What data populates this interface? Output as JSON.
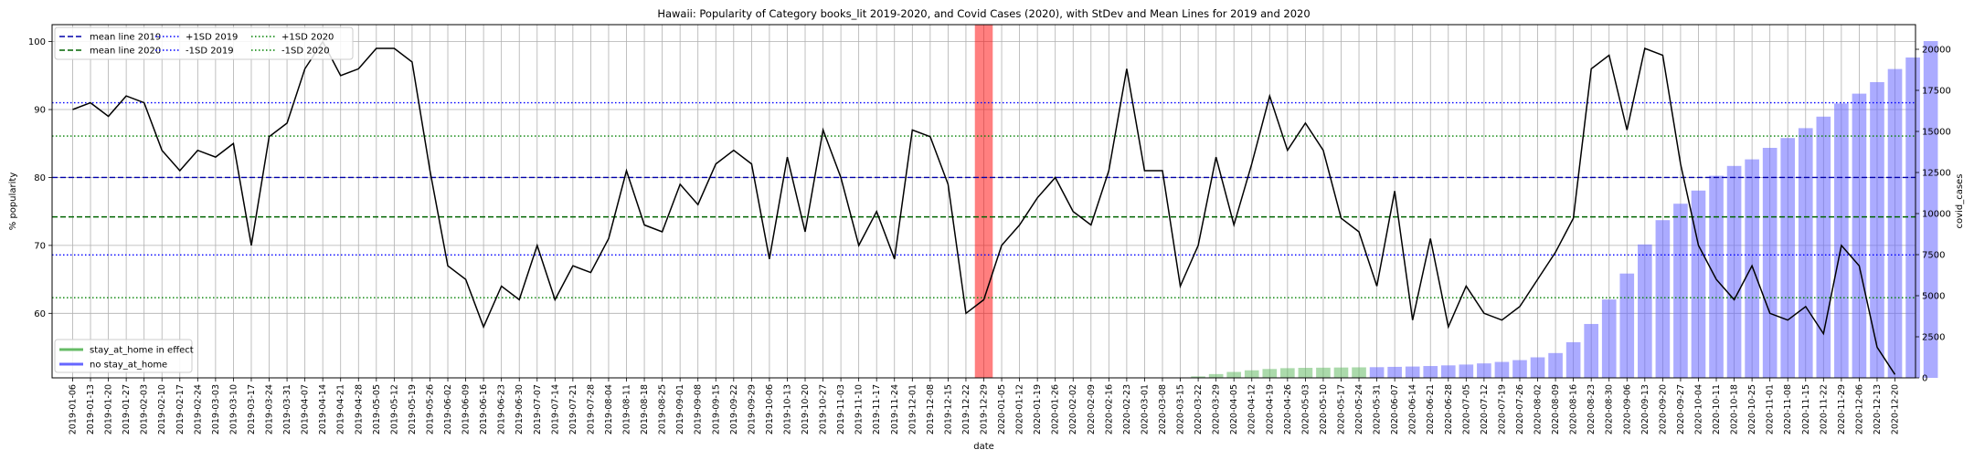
{
  "chart_data": {
    "type": "line",
    "title": "Hawaii: Popularity of Category books_lit 2019-2020, and Covid Cases (2020), with StDev and Mean Lines for 2019 and 2020",
    "xlabel": "date",
    "ylabel": "% popularity",
    "ylabel_right": "covid_cases",
    "ylim": [
      50.5,
      102.5
    ],
    "ylim_right": [
      0,
      21500
    ],
    "yticks": [
      60,
      70,
      80,
      90,
      100
    ],
    "yticks_right": [
      0,
      2500,
      5000,
      7500,
      10000,
      12500,
      15000,
      17500,
      20000
    ],
    "grid": true,
    "x": [
      "2019-01-06",
      "2019-01-13",
      "2019-01-20",
      "2019-01-27",
      "2019-02-03",
      "2019-02-10",
      "2019-02-17",
      "2019-02-24",
      "2019-03-03",
      "2019-03-10",
      "2019-03-17",
      "2019-03-24",
      "2019-03-31",
      "2019-04-07",
      "2019-04-14",
      "2019-04-21",
      "2019-04-28",
      "2019-05-05",
      "2019-05-12",
      "2019-05-19",
      "2019-05-26",
      "2019-06-02",
      "2019-06-09",
      "2019-06-16",
      "2019-06-23",
      "2019-06-30",
      "2019-07-07",
      "2019-07-14",
      "2019-07-21",
      "2019-07-28",
      "2019-08-04",
      "2019-08-11",
      "2019-08-18",
      "2019-08-25",
      "2019-09-01",
      "2019-09-08",
      "2019-09-15",
      "2019-09-22",
      "2019-09-29",
      "2019-10-06",
      "2019-10-13",
      "2019-10-20",
      "2019-10-27",
      "2019-11-03",
      "2019-11-10",
      "2019-11-17",
      "2019-11-24",
      "2019-12-01",
      "2019-12-08",
      "2019-12-15",
      "2019-12-22",
      "2019-12-29",
      "2020-01-05",
      "2020-01-12",
      "2020-01-19",
      "2020-01-26",
      "2020-02-02",
      "2020-02-09",
      "2020-02-16",
      "2020-02-23",
      "2020-03-01",
      "2020-03-08",
      "2020-03-15",
      "2020-03-22",
      "2020-03-29",
      "2020-04-05",
      "2020-04-12",
      "2020-04-19",
      "2020-04-26",
      "2020-05-03",
      "2020-05-10",
      "2020-05-17",
      "2020-05-24",
      "2020-05-31",
      "2020-06-07",
      "2020-06-14",
      "2020-06-21",
      "2020-06-28",
      "2020-07-05",
      "2020-07-12",
      "2020-07-19",
      "2020-07-26",
      "2020-08-02",
      "2020-08-09",
      "2020-08-16",
      "2020-08-23",
      "2020-08-30",
      "2020-09-06",
      "2020-09-13",
      "2020-09-20",
      "2020-09-27",
      "2020-10-04",
      "2020-10-11",
      "2020-10-18",
      "2020-10-25",
      "2020-11-01",
      "2020-11-08",
      "2020-11-15",
      "2020-11-22",
      "2020-11-29",
      "2020-12-06",
      "2020-12-13",
      "2020-12-20"
    ],
    "xtick_labels": [
      "2019-01-06",
      "2019-01-13",
      "2019-01-20",
      "2019-01-27",
      "2019-02-03",
      "2019-02-10",
      "2019-02-17",
      "2019-02-24",
      "2019-03-03",
      "2019-03-10",
      "2019-03-17",
      "2019-03-24",
      "2019-03-31",
      "2019-04-07",
      "2019-04-14",
      "2019-04-21",
      "2019-04-28",
      "2019-05-05",
      "2019-05-12",
      "2019-05-19",
      "2019-05-26",
      "2019-06-02",
      "2019-06-09",
      "2019-06-16",
      "2019-06-23",
      "2019-06-30",
      "2019-07-07",
      "2019-07-14",
      "2019-07-21",
      "2019-07-28",
      "2019-08-04",
      "2019-08-11",
      "2019-08-18",
      "2019-08-25",
      "2019-09-01",
      "2019-09-08",
      "2019-09-15",
      "2019-09-22",
      "2019-09-29",
      "2019-10-06",
      "2019-10-13",
      "2019-10-20",
      "2019-10-27",
      "2019-11-03",
      "2019-11-10",
      "2019-11-17",
      "2019-11-24",
      "2019-12-01",
      "2019-12-08",
      "2019-12-15",
      "2019-12-22",
      "2019-12-29",
      "2020-01-05",
      "2020-01-12",
      "2020-01-19",
      "2020-01-26",
      "2020-02-02",
      "2020-02-09",
      "2020-02-16",
      "2020-02-23",
      "2020-03-01",
      "2020-03-08",
      "2020-03-15",
      "2020-03-22",
      "2020-03-29",
      "2020-04-05",
      "2020-04-12",
      "2020-04-19",
      "2020-04-26",
      "2020-05-03",
      "2020-05-10",
      "2020-05-17",
      "2020-05-24",
      "2020-05-31",
      "2020-06-07",
      "2020-06-14",
      "2020-06-21",
      "2020-06-28",
      "2020-07-05",
      "2020-07-12",
      "2020-07-19",
      "2020-07-26",
      "2020-08-02",
      "2020-08-09",
      "2020-08-16",
      "2020-08-23",
      "2020-08-30",
      "2020-09-06",
      "2020-09-13",
      "2020-09-20",
      "2020-09-27",
      "2020-10-04",
      "2020-10-11",
      "2020-10-18",
      "2020-10-25",
      "2020-11-01",
      "2020-11-08",
      "2020-11-15",
      "2020-11-22",
      "2020-11-29",
      "2020-12-06",
      "2020-12-13",
      "2020-12-20"
    ],
    "popularity": {
      "color": "#000000",
      "values": [
        90,
        91,
        89,
        92,
        91,
        84,
        81,
        84,
        83,
        85,
        70,
        86,
        88,
        96,
        100,
        95,
        96,
        99,
        99,
        97,
        81,
        67,
        65,
        58,
        64,
        62,
        70,
        62,
        67,
        66,
        71,
        81,
        73,
        72,
        79,
        76,
        82,
        84,
        82,
        68,
        83,
        72,
        87,
        80,
        70,
        75,
        68,
        87,
        86,
        79,
        60,
        62,
        70,
        73,
        77,
        80,
        75,
        73,
        81,
        96,
        81,
        81,
        64,
        70,
        83,
        73,
        82,
        92,
        84,
        88,
        84,
        74,
        72,
        64,
        78,
        59,
        71,
        58,
        64,
        60,
        59,
        61,
        65,
        69,
        74,
        96,
        98,
        87,
        99,
        98,
        82,
        70,
        65,
        62,
        67,
        60,
        59,
        61,
        57,
        70,
        67,
        55,
        51
      ]
    },
    "covid_cases": {
      "color": "#0000ff",
      "values": [
        0,
        0,
        0,
        0,
        0,
        0,
        0,
        0,
        0,
        0,
        0,
        0,
        0,
        0,
        0,
        0,
        0,
        0,
        0,
        0,
        0,
        0,
        0,
        0,
        0,
        0,
        0,
        0,
        0,
        0,
        0,
        0,
        0,
        0,
        0,
        0,
        0,
        0,
        0,
        0,
        0,
        0,
        0,
        0,
        0,
        0,
        0,
        0,
        0,
        0,
        0,
        0,
        0,
        0,
        0,
        0,
        0,
        0,
        0,
        0,
        0,
        0,
        20,
        90,
        230,
        360,
        460,
        540,
        590,
        610,
        620,
        630,
        640,
        650,
        670,
        690,
        720,
        760,
        810,
        880,
        970,
        1080,
        1250,
        1510,
        2170,
        3280,
        4770,
        6350,
        8120,
        9600,
        10600,
        11400,
        12300,
        12900,
        13300,
        14000,
        14600,
        15200,
        15900,
        16700,
        17300,
        18000,
        18800,
        19500,
        20500
      ],
      "stay_at_home": [
        false,
        false,
        false,
        false,
        false,
        false,
        false,
        false,
        false,
        false,
        false,
        false,
        false,
        false,
        false,
        false,
        false,
        false,
        false,
        false,
        false,
        false,
        false,
        false,
        false,
        false,
        false,
        false,
        false,
        false,
        false,
        false,
        false,
        false,
        false,
        false,
        false,
        false,
        false,
        false,
        false,
        false,
        false,
        false,
        false,
        false,
        false,
        false,
        false,
        false,
        false,
        false,
        false,
        false,
        false,
        false,
        false,
        false,
        false,
        false,
        false,
        false,
        true,
        true,
        true,
        true,
        true,
        true,
        true,
        true,
        true,
        true,
        true,
        false,
        false,
        false,
        false,
        false,
        false,
        false,
        false,
        false,
        false,
        false,
        false,
        false,
        false,
        false,
        false,
        false,
        false,
        false,
        false,
        false,
        false,
        false,
        false,
        false,
        false,
        false,
        false,
        false,
        false
      ]
    },
    "highlight_band": {
      "from": "2019-12-22",
      "to": "2020-01-05",
      "color": "#ff0000"
    },
    "hlines": [
      {
        "name": "mean line 2019",
        "value": 80.0,
        "color": "#0000aa",
        "style": "dashed"
      },
      {
        "name": "mean line 2020",
        "value": 74.2,
        "color": "#006400",
        "style": "dashed"
      },
      {
        "name": "+1SD 2019",
        "value": 91.0,
        "color": "#0000ff",
        "style": "dotted"
      },
      {
        "name": "-1SD 2019",
        "value": 68.6,
        "color": "#0000ff",
        "style": "dotted"
      },
      {
        "name": "+1SD 2020",
        "value": 86.1,
        "color": "#008000",
        "style": "dotted"
      },
      {
        "name": "-1SD 2020",
        "value": 62.3,
        "color": "#008000",
        "style": "dotted"
      }
    ],
    "legend_top": {
      "placement": "top-left",
      "entries": [
        {
          "label": "mean line 2019",
          "color": "#0000aa",
          "style": "dashed"
        },
        {
          "label": "mean line 2020",
          "color": "#006400",
          "style": "dashed"
        },
        {
          "label": "+1SD 2019",
          "color": "#0000ff",
          "style": "dotted"
        },
        {
          "label": "-1SD 2019",
          "color": "#0000ff",
          "style": "dotted"
        },
        {
          "label": "+1SD 2020",
          "color": "#008000",
          "style": "dotted"
        },
        {
          "label": "-1SD 2020",
          "color": "#008000",
          "style": "dotted"
        }
      ]
    },
    "legend_bottom": {
      "placement": "bottom-left",
      "entries": [
        {
          "label": "stay_at_home in effect",
          "color": "#66bb66"
        },
        {
          "label": "no stay_at_home",
          "color": "#6666ff"
        }
      ]
    }
  }
}
